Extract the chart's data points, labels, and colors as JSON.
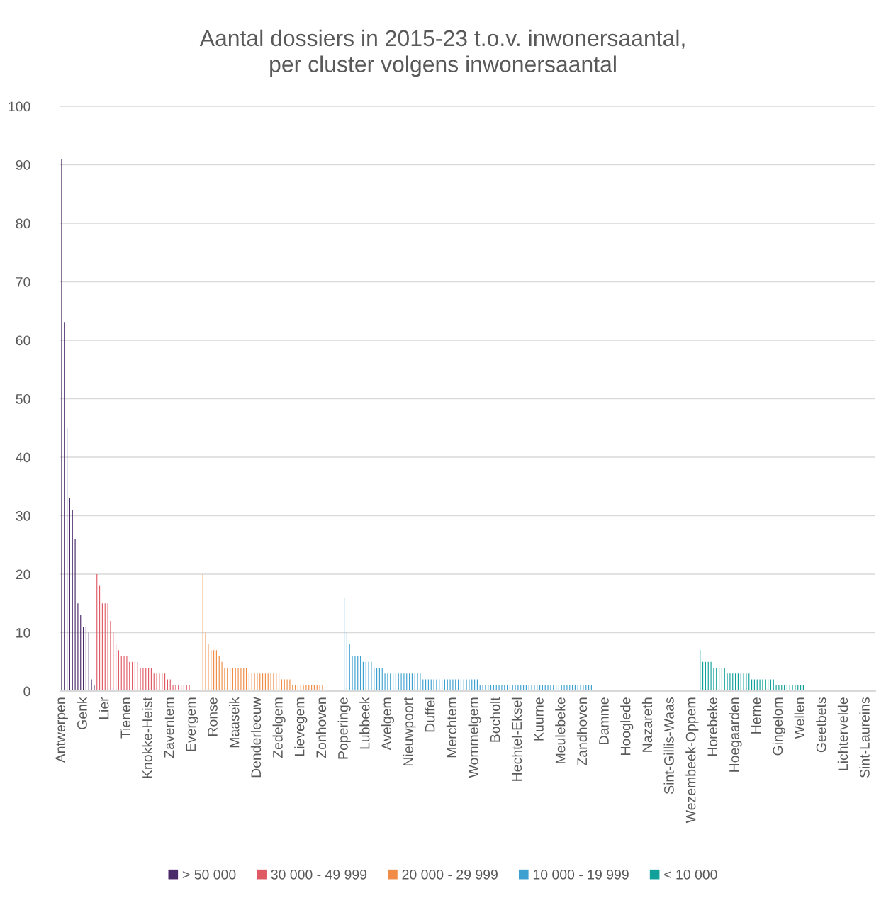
{
  "chart_data": {
    "type": "bar",
    "title": "Aantal dossiers in 2015-23 t.o.v. inwonersaantal,\nper cluster volgens inwonersaantal",
    "categories": [
      "Antwerpen",
      null,
      null,
      null,
      null,
      null,
      null,
      null,
      "Genk",
      null,
      null,
      null,
      null,
      null,
      null,
      null,
      "Lier",
      null,
      null,
      null,
      null,
      null,
      null,
      null,
      "Tienen",
      null,
      null,
      null,
      null,
      null,
      null,
      null,
      "Knokke-Heist",
      null,
      null,
      null,
      null,
      null,
      null,
      null,
      "Zaventem",
      null,
      null,
      null,
      null,
      null,
      null,
      null,
      "Evergem",
      null,
      null,
      null,
      null,
      null,
      null,
      null,
      "Ronse",
      null,
      null,
      null,
      null,
      null,
      null,
      null,
      "Maaseik",
      null,
      null,
      null,
      null,
      null,
      null,
      null,
      "Denderleeuw",
      null,
      null,
      null,
      null,
      null,
      null,
      null,
      "Zedelgem",
      null,
      null,
      null,
      null,
      null,
      null,
      null,
      "Lievegem",
      null,
      null,
      null,
      null,
      null,
      null,
      null,
      "Zonhoven",
      null,
      null,
      null,
      null,
      null,
      null,
      null,
      "Poperinge",
      null,
      null,
      null,
      null,
      null,
      null,
      null,
      "Lubbeek",
      null,
      null,
      null,
      null,
      null,
      null,
      null,
      "Avelgem",
      null,
      null,
      null,
      null,
      null,
      null,
      null,
      "Nieuwpoort",
      null,
      null,
      null,
      null,
      null,
      null,
      null,
      "Duffel",
      null,
      null,
      null,
      null,
      null,
      null,
      null,
      "Merchtem",
      null,
      null,
      null,
      null,
      null,
      null,
      null,
      "Wommelgem",
      null,
      null,
      null,
      null,
      null,
      null,
      null,
      "Bocholt",
      null,
      null,
      null,
      null,
      null,
      null,
      null,
      "Hechtel-Eksel",
      null,
      null,
      null,
      null,
      null,
      null,
      null,
      "Kuurne",
      null,
      null,
      null,
      null,
      null,
      null,
      null,
      "Meulebeke",
      null,
      null,
      null,
      null,
      null,
      null,
      null,
      "Zandhoven",
      null,
      null,
      null,
      null,
      null,
      null,
      null,
      "Damme",
      null,
      null,
      null,
      null,
      null,
      null,
      null,
      "Hooglede",
      null,
      null,
      null,
      null,
      null,
      null,
      null,
      "Nazareth",
      null,
      null,
      null,
      null,
      null,
      null,
      null,
      "Sint-Gillis-Waas",
      null,
      null,
      null,
      null,
      null,
      null,
      null,
      "Wezembeek-Oppem",
      null,
      null,
      null,
      null,
      null,
      null,
      null,
      "Horebeke",
      null,
      null,
      null,
      null,
      null,
      null,
      null,
      "Hoegaarden",
      null,
      null,
      null,
      null,
      null,
      null,
      null,
      "Herne",
      null,
      null,
      null,
      null,
      null,
      null,
      null,
      "Gingelom",
      null,
      null,
      null,
      null,
      null,
      null,
      null,
      "Wellen",
      null,
      null,
      null,
      null,
      null,
      null,
      null,
      "Geetbets",
      null,
      null,
      null,
      null,
      null,
      null,
      null,
      "Lichtervelde",
      null,
      null,
      null,
      null,
      null,
      null,
      null,
      "Sint-Laureins",
      null,
      null,
      null
    ],
    "series": [
      {
        "name": "> 50 000",
        "color": "#4a2a6a",
        "values": [
          91,
          63,
          45,
          33,
          31,
          26,
          15,
          13,
          11,
          11,
          10,
          2,
          1,
          null,
          null,
          null,
          null,
          null,
          null,
          null,
          null,
          null,
          null,
          null,
          null,
          null,
          null,
          null,
          null,
          null,
          null,
          null,
          null,
          null,
          null,
          null,
          null,
          null,
          null,
          null,
          null,
          null,
          null,
          null,
          null,
          null,
          null,
          null,
          null,
          null,
          null,
          null,
          null,
          null,
          null,
          null,
          null,
          null,
          null,
          null,
          null,
          null,
          null,
          null,
          null,
          null,
          null,
          null,
          null,
          null,
          null,
          null,
          null,
          null,
          null,
          null,
          null,
          null,
          null,
          null,
          null,
          null,
          null,
          null,
          null,
          null,
          null,
          null,
          null,
          null,
          null,
          null,
          null,
          null,
          null,
          null,
          null,
          null,
          null,
          null,
          null,
          null,
          null,
          null,
          null,
          null,
          null,
          null,
          null,
          null,
          null,
          null,
          null,
          null,
          null,
          null,
          null,
          null,
          null,
          null,
          null,
          null,
          null,
          null,
          null,
          null,
          null,
          null,
          null,
          null,
          null,
          null,
          null,
          null,
          null,
          null,
          null,
          null,
          null,
          null,
          null,
          null,
          null,
          null,
          null,
          null,
          null,
          null,
          null,
          null,
          null,
          null,
          null,
          null,
          null,
          null,
          null,
          null,
          null,
          null,
          null,
          null,
          null,
          null,
          null,
          null,
          null,
          null,
          null,
          null,
          null,
          null,
          null,
          null,
          null,
          null,
          null,
          null,
          null,
          null,
          null,
          null,
          null,
          null,
          null,
          null,
          null,
          null,
          null,
          null,
          null,
          null,
          null,
          null,
          null,
          null,
          null,
          null,
          null,
          null,
          null,
          null,
          null,
          null,
          null,
          null,
          null,
          null,
          null,
          null,
          null,
          null,
          null,
          null,
          null,
          null,
          null,
          null,
          null,
          null,
          null,
          null,
          null,
          null,
          null,
          null,
          null,
          null,
          null,
          null,
          null,
          null,
          null,
          null,
          null,
          null,
          null,
          null,
          null,
          null,
          null,
          null,
          null,
          null,
          null,
          null,
          null,
          null,
          null,
          null,
          null,
          null,
          null,
          null,
          null,
          null,
          null,
          null,
          null,
          null,
          null,
          null,
          null,
          null,
          null,
          null,
          null,
          null,
          null,
          null,
          null,
          null,
          null,
          null,
          null,
          null,
          null,
          null,
          null,
          null,
          null,
          null,
          null,
          null,
          null,
          null,
          null,
          null,
          null,
          null,
          null,
          null,
          null,
          null,
          null,
          null,
          null,
          null,
          null,
          null
        ]
      },
      {
        "name": "30 000 - 49 999",
        "color": "#e05a65",
        "values": [
          null,
          null,
          null,
          null,
          null,
          null,
          null,
          null,
          null,
          null,
          null,
          null,
          null,
          20,
          18,
          15,
          15,
          15,
          12,
          10,
          8,
          7,
          6,
          6,
          6,
          5,
          5,
          5,
          5,
          4,
          4,
          4,
          4,
          4,
          3,
          3,
          3,
          3,
          3,
          2,
          2,
          1,
          1,
          1,
          1,
          1,
          1,
          1,
          0,
          0,
          0,
          0,
          null,
          null,
          null,
          null,
          null,
          null,
          null,
          null,
          null,
          null,
          null,
          null,
          null,
          null,
          null,
          null,
          null,
          null,
          null,
          null,
          null,
          null,
          null,
          null,
          null,
          null,
          null,
          null,
          null,
          null,
          null,
          null,
          null,
          null,
          null,
          null,
          null,
          null,
          null,
          null,
          null,
          null,
          null,
          null,
          null,
          null,
          null,
          null,
          null,
          null,
          null,
          null,
          null,
          null,
          null,
          null,
          null,
          null,
          null,
          null,
          null,
          null,
          null,
          null,
          null,
          null,
          null,
          null,
          null,
          null,
          null,
          null,
          null,
          null,
          null,
          null,
          null,
          null,
          null,
          null,
          null,
          null,
          null,
          null,
          null,
          null,
          null,
          null,
          null,
          null,
          null,
          null,
          null,
          null,
          null,
          null,
          null,
          null,
          null,
          null,
          null,
          null,
          null,
          null,
          null,
          null,
          null,
          null,
          null,
          null,
          null,
          null,
          null,
          null,
          null,
          null,
          null,
          null,
          null,
          null,
          null,
          null,
          null,
          null,
          null,
          null,
          null,
          null,
          null,
          null,
          null,
          null,
          null,
          null,
          null,
          null,
          null,
          null,
          null,
          null,
          null,
          null,
          null,
          null,
          null,
          null,
          null,
          null,
          null,
          null,
          null,
          null,
          null,
          null,
          null,
          null,
          null,
          null,
          null,
          null,
          null,
          null,
          null,
          null,
          null,
          null,
          null,
          null,
          null,
          null,
          null,
          null,
          null,
          null,
          null,
          null,
          null,
          null,
          null,
          null,
          null,
          null,
          null,
          null,
          null,
          null,
          null,
          null,
          null,
          null,
          null,
          null,
          null,
          null,
          null,
          null,
          null,
          null,
          null,
          null,
          null,
          null,
          null,
          null,
          null,
          null,
          null,
          null,
          null,
          null,
          null,
          null,
          null,
          null,
          null,
          null,
          null,
          null,
          null,
          null,
          null,
          null,
          null,
          null,
          null,
          null,
          null,
          null,
          null,
          null,
          null,
          null,
          null,
          null,
          null,
          null,
          null,
          null,
          null,
          null,
          null,
          null,
          null,
          null,
          null,
          null,
          null,
          null
        ]
      },
      {
        "name": "20 000 - 29 999",
        "color": "#f08c45",
        "values": [
          null,
          null,
          null,
          null,
          null,
          null,
          null,
          null,
          null,
          null,
          null,
          null,
          null,
          null,
          null,
          null,
          null,
          null,
          null,
          null,
          null,
          null,
          null,
          null,
          null,
          null,
          null,
          null,
          null,
          null,
          null,
          null,
          null,
          null,
          null,
          null,
          null,
          null,
          null,
          null,
          null,
          null,
          null,
          null,
          null,
          null,
          null,
          null,
          null,
          null,
          null,
          null,
          20,
          10,
          8,
          7,
          7,
          7,
          6,
          5,
          4,
          4,
          4,
          4,
          4,
          4,
          4,
          4,
          4,
          3,
          3,
          3,
          3,
          3,
          3,
          3,
          3,
          3,
          3,
          3,
          3,
          2,
          2,
          2,
          2,
          1,
          1,
          1,
          1,
          1,
          1,
          1,
          1,
          1,
          1,
          1,
          1,
          0,
          0,
          0,
          0,
          0,
          0,
          0,
          null,
          null,
          null,
          null,
          null,
          null,
          null,
          null,
          null,
          null,
          null,
          null,
          null,
          null,
          null,
          null,
          null,
          null,
          null,
          null,
          null,
          null,
          null,
          null,
          null,
          null,
          null,
          null,
          null,
          null,
          null,
          null,
          null,
          null,
          null,
          null,
          null,
          null,
          null,
          null,
          null,
          null,
          null,
          null,
          null,
          null,
          null,
          null,
          null,
          null,
          null,
          null,
          null,
          null,
          null,
          null,
          null,
          null,
          null,
          null,
          null,
          null,
          null,
          null,
          null,
          null,
          null,
          null,
          null,
          null,
          null,
          null,
          null,
          null,
          null,
          null,
          null,
          null,
          null,
          null,
          null,
          null,
          null,
          null,
          null,
          null,
          null,
          null,
          null,
          null,
          null,
          null,
          null,
          null,
          null,
          null,
          null,
          null,
          null,
          null,
          null,
          null,
          null,
          null,
          null,
          null,
          null,
          null,
          null,
          null,
          null,
          null,
          null,
          null,
          null,
          null,
          null,
          null,
          null,
          null,
          null,
          null,
          null,
          null,
          null,
          null,
          null,
          null,
          null,
          null,
          null,
          null,
          null,
          null,
          null,
          null,
          null,
          null,
          null,
          null,
          null,
          null,
          null,
          null,
          null,
          null,
          null,
          null,
          null,
          null,
          null,
          null,
          null,
          null,
          null,
          null,
          null,
          null,
          null,
          null,
          null,
          null,
          null,
          null,
          null,
          null,
          null,
          null,
          null,
          null,
          null,
          null,
          null,
          null,
          null,
          null,
          null,
          null,
          null,
          null,
          null,
          null,
          null,
          null,
          null,
          null,
          null,
          null,
          null,
          null,
          null,
          null,
          null,
          null,
          null,
          null
        ]
      },
      {
        "name": "10 000 - 19 999",
        "color": "#3ca0d0",
        "values": [
          null,
          null,
          null,
          null,
          null,
          null,
          null,
          null,
          null,
          null,
          null,
          null,
          null,
          null,
          null,
          null,
          null,
          null,
          null,
          null,
          null,
          null,
          null,
          null,
          null,
          null,
          null,
          null,
          null,
          null,
          null,
          null,
          null,
          null,
          null,
          null,
          null,
          null,
          null,
          null,
          null,
          null,
          null,
          null,
          null,
          null,
          null,
          null,
          null,
          null,
          null,
          null,
          null,
          null,
          null,
          null,
          null,
          null,
          null,
          null,
          null,
          null,
          null,
          null,
          null,
          null,
          null,
          null,
          null,
          null,
          null,
          null,
          null,
          null,
          null,
          null,
          null,
          null,
          null,
          null,
          null,
          null,
          null,
          null,
          null,
          null,
          null,
          null,
          null,
          null,
          null,
          null,
          null,
          null,
          null,
          null,
          null,
          null,
          null,
          null,
          null,
          null,
          null,
          null,
          16,
          10,
          8,
          6,
          6,
          6,
          6,
          5,
          5,
          5,
          5,
          4,
          4,
          4,
          4,
          3,
          3,
          3,
          3,
          3,
          3,
          3,
          3,
          3,
          3,
          3,
          3,
          3,
          3,
          2,
          2,
          2,
          2,
          2,
          2,
          2,
          2,
          2,
          2,
          2,
          2,
          2,
          2,
          2,
          2,
          2,
          2,
          2,
          2,
          2,
          1,
          1,
          1,
          1,
          1,
          1,
          1,
          1,
          1,
          1,
          1,
          1,
          1,
          1,
          1,
          1,
          1,
          1,
          1,
          1,
          1,
          1,
          1,
          1,
          1,
          1,
          1,
          1,
          1,
          1,
          1,
          1,
          1,
          1,
          1,
          1,
          1,
          1,
          1,
          1,
          1,
          1,
          0,
          0,
          0,
          0,
          0,
          0,
          0,
          0,
          0,
          0,
          0,
          0,
          0,
          0,
          0,
          0,
          0,
          0,
          0,
          0,
          0,
          0,
          0,
          0,
          0,
          0,
          0,
          0,
          0,
          0,
          0,
          0,
          0,
          0,
          0,
          0,
          0,
          0,
          0,
          0,
          0,
          0,
          0,
          null,
          null,
          null,
          null,
          null,
          null,
          null,
          null,
          null,
          null,
          null,
          null,
          null,
          null,
          null,
          null,
          null,
          null,
          null,
          null,
          null,
          null,
          null,
          null,
          null,
          null,
          null,
          null,
          null,
          null,
          null,
          null,
          null,
          null,
          null,
          null,
          null,
          null,
          null,
          null,
          null,
          null,
          null,
          null,
          null,
          null,
          null,
          null,
          null,
          null,
          null,
          null,
          null,
          null,
          null,
          null,
          null,
          null,
          null,
          null,
          null
        ]
      },
      {
        "name": "< 10 000",
        "color": "#11a09a",
        "values": [
          null,
          null,
          null,
          null,
          null,
          null,
          null,
          null,
          null,
          null,
          null,
          null,
          null,
          null,
          null,
          null,
          null,
          null,
          null,
          null,
          null,
          null,
          null,
          null,
          null,
          null,
          null,
          null,
          null,
          null,
          null,
          null,
          null,
          null,
          null,
          null,
          null,
          null,
          null,
          null,
          null,
          null,
          null,
          null,
          null,
          null,
          null,
          null,
          null,
          null,
          null,
          null,
          null,
          null,
          null,
          null,
          null,
          null,
          null,
          null,
          null,
          null,
          null,
          null,
          null,
          null,
          null,
          null,
          null,
          null,
          null,
          null,
          null,
          null,
          null,
          null,
          null,
          null,
          null,
          null,
          null,
          null,
          null,
          null,
          null,
          null,
          null,
          null,
          null,
          null,
          null,
          null,
          null,
          null,
          null,
          null,
          null,
          null,
          null,
          null,
          null,
          null,
          null,
          null,
          null,
          null,
          null,
          null,
          null,
          null,
          null,
          null,
          null,
          null,
          null,
          null,
          null,
          null,
          null,
          null,
          null,
          null,
          null,
          null,
          null,
          null,
          null,
          null,
          null,
          null,
          null,
          null,
          null,
          null,
          null,
          null,
          null,
          null,
          null,
          null,
          null,
          null,
          null,
          null,
          null,
          null,
          null,
          null,
          null,
          null,
          null,
          null,
          null,
          null,
          null,
          null,
          null,
          null,
          null,
          null,
          null,
          null,
          null,
          null,
          null,
          null,
          null,
          null,
          null,
          null,
          null,
          null,
          null,
          null,
          null,
          null,
          null,
          null,
          null,
          null,
          null,
          null,
          null,
          null,
          null,
          null,
          null,
          null,
          null,
          null,
          null,
          null,
          null,
          null,
          null,
          null,
          null,
          null,
          null,
          null,
          null,
          null,
          null,
          null,
          null,
          null,
          null,
          null,
          null,
          null,
          null,
          null,
          null,
          null,
          null,
          null,
          null,
          null,
          null,
          null,
          null,
          null,
          null,
          null,
          null,
          null,
          null,
          null,
          null,
          null,
          null,
          null,
          null,
          null,
          null,
          7,
          5,
          5,
          5,
          5,
          4,
          4,
          4,
          4,
          4,
          3,
          3,
          3,
          3,
          3,
          3,
          3,
          3,
          3,
          2,
          2,
          2,
          2,
          2,
          2,
          2,
          2,
          2,
          1,
          1,
          1,
          1,
          1,
          1,
          1,
          1,
          1,
          1,
          1,
          0,
          0,
          0,
          0,
          0,
          0,
          0,
          0,
          0,
          0,
          0,
          0,
          0,
          0,
          0,
          0,
          0,
          0,
          0,
          0,
          0,
          0,
          0,
          0,
          0,
          0
        ]
      }
    ],
    "ylim": [
      0,
      100
    ],
    "yticks": [
      0,
      10,
      20,
      30,
      40,
      50,
      60,
      70,
      80,
      90,
      100
    ],
    "grid": "y",
    "legend": "bottom"
  }
}
